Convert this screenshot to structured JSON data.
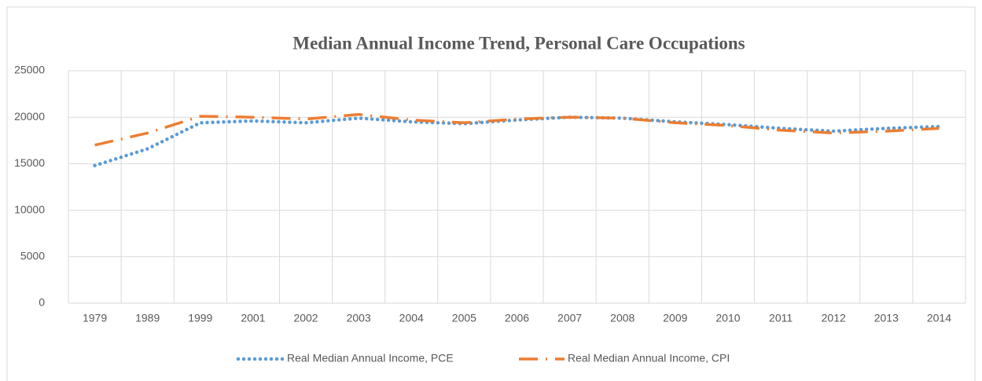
{
  "chart_data": {
    "type": "line",
    "title": "Median Annual Income Trend, Personal Care Occupations",
    "categories": [
      "1979",
      "1989",
      "1999",
      "2001",
      "2002",
      "2003",
      "2004",
      "2005",
      "2006",
      "2007",
      "2008",
      "2009",
      "2010",
      "2011",
      "2012",
      "2013",
      "2014"
    ],
    "series": [
      {
        "name": "Real Median Annual Income, PCE",
        "color": "#5b9bd5",
        "values": [
          14800,
          16600,
          19400,
          19600,
          19400,
          19900,
          19500,
          19300,
          19700,
          20000,
          19900,
          19500,
          19200,
          18800,
          18500,
          18800,
          19000
        ]
      },
      {
        "name": "Real Median Annual Income, CPI",
        "color": "#ed7d31",
        "values": [
          17000,
          18300,
          20100,
          20000,
          19800,
          20300,
          19700,
          19400,
          19800,
          20000,
          19900,
          19400,
          19100,
          18600,
          18300,
          18500,
          18800
        ]
      }
    ],
    "ylim": [
      0,
      25000
    ],
    "yticks": [
      0,
      5000,
      10000,
      15000,
      20000,
      25000
    ],
    "grid": true,
    "legend": "bottom"
  }
}
